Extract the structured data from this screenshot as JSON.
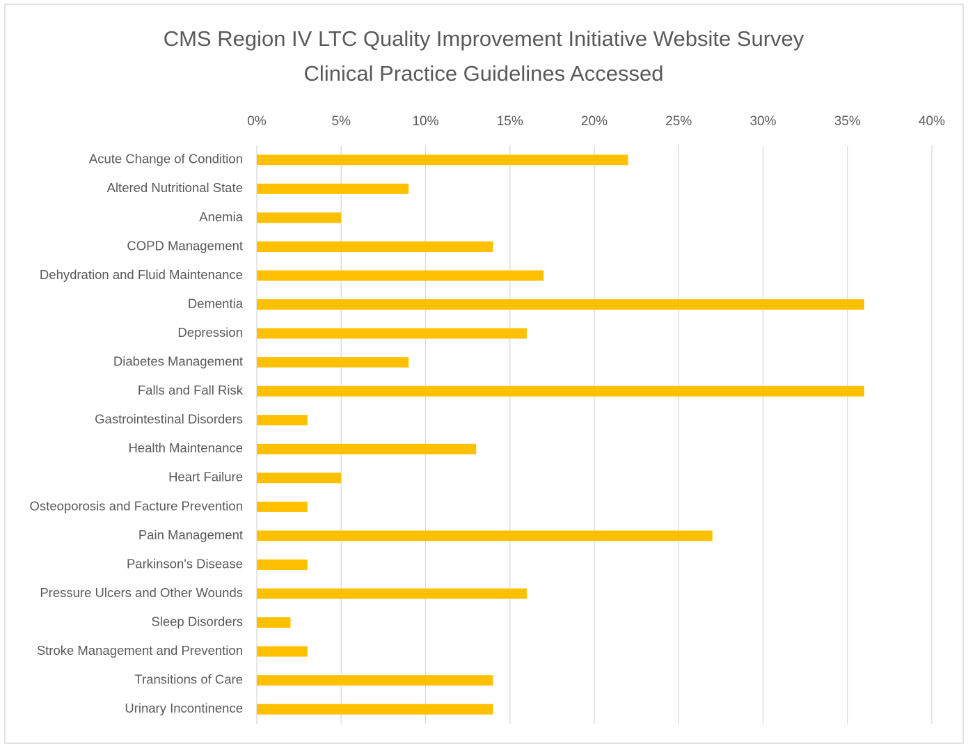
{
  "chart_data": {
    "type": "bar",
    "orientation": "horizontal",
    "title": "CMS Region IV LTC Quality Improvement Initiative Website Survey",
    "subtitle": "Clinical Practice Guidelines Accessed",
    "categories": [
      "Acute Change of Condition",
      "Altered Nutritional State",
      "Anemia",
      "COPD Management",
      "Dehydration and Fluid Maintenance",
      "Dementia",
      "Depression",
      "Diabetes Management",
      "Falls and Fall Risk",
      "Gastrointestinal Disorders",
      "Health Maintenance",
      "Heart Failure",
      "Osteoporosis and Facture Prevention",
      "Pain Management",
      "Parkinson's Disease",
      "Pressure Ulcers and Other Wounds",
      "Sleep Disorders",
      "Stroke Management and Prevention",
      "Transitions of Care",
      "Urinary Incontinence"
    ],
    "values": [
      22,
      9,
      5,
      14,
      17,
      36,
      16,
      9,
      36,
      3,
      13,
      5,
      3,
      27,
      3,
      16,
      2,
      3,
      14,
      14
    ],
    "color": "#ffc000",
    "xlim": [
      0,
      40
    ],
    "xticks": [
      {
        "value": 0,
        "label": "0%"
      },
      {
        "value": 5,
        "label": "5%"
      },
      {
        "value": 10,
        "label": "10%"
      },
      {
        "value": 15,
        "label": "15%"
      },
      {
        "value": 20,
        "label": "20%"
      },
      {
        "value": 25,
        "label": "25%"
      },
      {
        "value": 30,
        "label": "30%"
      },
      {
        "value": 35,
        "label": "35%"
      },
      {
        "value": 40,
        "label": "40%"
      }
    ],
    "grid": true
  }
}
